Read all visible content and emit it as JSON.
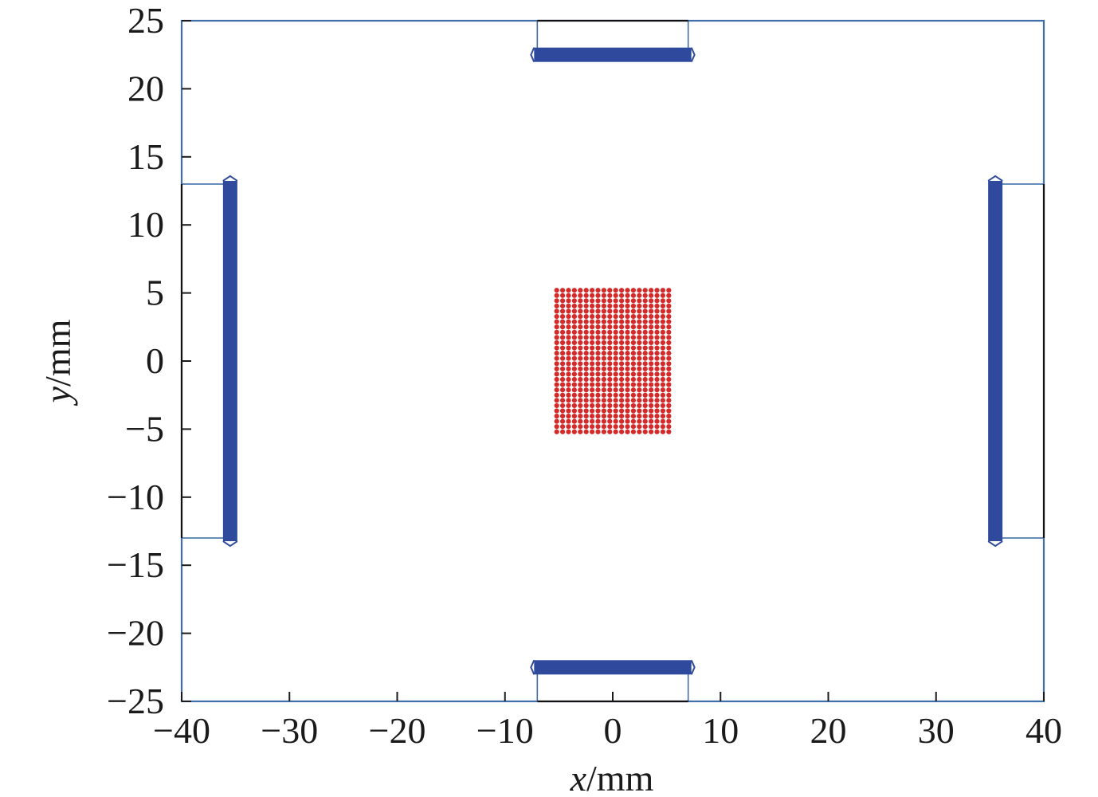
{
  "chart_data": {
    "type": "scatter",
    "title": "",
    "xlabel_var": "x",
    "xlabel_unit": "/mm",
    "ylabel_var": "y",
    "ylabel_unit": "/mm",
    "xlim": [
      -40,
      40
    ],
    "ylim": [
      -25,
      25
    ],
    "xticks": [
      -40,
      -30,
      -20,
      -10,
      0,
      10,
      20,
      30,
      40
    ],
    "yticks": [
      -25,
      -20,
      -15,
      -10,
      -5,
      0,
      5,
      10,
      15,
      20,
      25
    ],
    "xtick_labels": [
      "−40",
      "−30",
      "−20",
      "−10",
      "0",
      "10",
      "20",
      "30",
      "40"
    ],
    "ytick_labels": [
      "−25",
      "−20",
      "−15",
      "−10",
      "−5",
      "0",
      "5",
      "10",
      "15",
      "20",
      "25"
    ],
    "grid": false,
    "axis_color": "#3f6fa8",
    "boundary": {
      "color": "#3f6fa8",
      "outer_box": {
        "x": [
          -40,
          40
        ],
        "y": [
          -25,
          25
        ]
      },
      "openings": [
        {
          "name": "top",
          "x": [
            -7,
            7
          ],
          "y": [
            22.5,
            25
          ]
        },
        {
          "name": "bottom",
          "x": [
            -7,
            7
          ],
          "y": [
            -25,
            -22.5
          ]
        },
        {
          "name": "left",
          "x": [
            -40,
            -35.5
          ],
          "y": [
            -13,
            13
          ]
        },
        {
          "name": "right",
          "x": [
            35.5,
            40
          ],
          "y": [
            -13,
            13
          ]
        }
      ],
      "open_edge_color": "#111111"
    },
    "series": [
      {
        "marker": "dot",
        "color": "#d42a2a",
        "x_range": [
          -5.2,
          5.2
        ],
        "y_range": [
          -5.2,
          5.2
        ],
        "grid_count": [
          20,
          28
        ]
      },
      {
        "marker": "bar",
        "color": "#2f4a9c",
        "segments": [
          {
            "name": "top-electrode",
            "x": [
              -7,
              7
            ],
            "y": 22.5,
            "orientation": "horizontal"
          },
          {
            "name": "bottom-electrode",
            "x": [
              -7,
              7
            ],
            "y": -22.5,
            "orientation": "horizontal"
          },
          {
            "name": "left-electrode",
            "x": -35.5,
            "y": [
              -13,
              13
            ],
            "orientation": "vertical"
          },
          {
            "name": "right-electrode",
            "x": 35.5,
            "y": [
              -13,
              13
            ],
            "orientation": "vertical"
          }
        ]
      }
    ]
  }
}
